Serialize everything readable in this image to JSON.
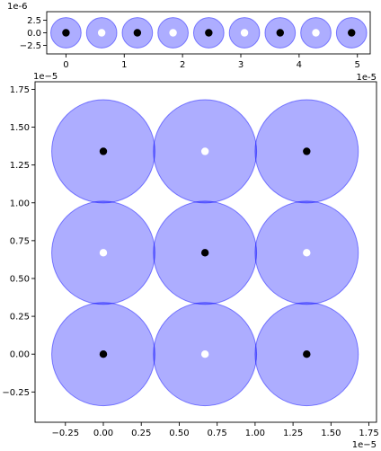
{
  "chart_data": [
    {
      "type": "scatter",
      "x_offset_label": "1e-5",
      "y_offset_label": "1e-6",
      "x_ticks": [
        0,
        1,
        2,
        3,
        4,
        5
      ],
      "y_ticks": [
        2.5,
        0.0,
        -2.5
      ],
      "x_tick_labels": [
        "0",
        "1",
        "2",
        "3",
        "4",
        "5"
      ],
      "y_tick_labels": [
        "2.5",
        "0.0",
        "−2.5"
      ],
      "xlim": [
        -0.33,
        5.22
      ],
      "ylim": [
        -4.2,
        4.2
      ],
      "circle_radius": 0.26,
      "circle_color": "#0000ff",
      "circle_alpha": 0.32,
      "points": [
        {
          "x": 0.0,
          "y": 0,
          "color": "#000000"
        },
        {
          "x": 0.6125,
          "y": 0,
          "color": "#ffffff"
        },
        {
          "x": 1.225,
          "y": 0,
          "color": "#000000"
        },
        {
          "x": 1.8375,
          "y": 0,
          "color": "#ffffff"
        },
        {
          "x": 2.45,
          "y": 0,
          "color": "#000000"
        },
        {
          "x": 3.0625,
          "y": 0,
          "color": "#ffffff"
        },
        {
          "x": 3.675,
          "y": 0,
          "color": "#000000"
        },
        {
          "x": 4.2875,
          "y": 0,
          "color": "#ffffff"
        },
        {
          "x": 4.9,
          "y": 0,
          "color": "#000000"
        }
      ]
    },
    {
      "type": "scatter",
      "x_offset_label": "1e−5",
      "y_offset_label": "1e−5",
      "x_offset_label_bottom": "1e−5",
      "x_ticks": [
        -0.25,
        0.0,
        0.25,
        0.5,
        0.75,
        1.0,
        1.25,
        1.5,
        1.75
      ],
      "x_tick_labels": [
        "−0.25",
        "0.00",
        "0.25",
        "0.50",
        "0.75",
        "1.00",
        "1.25",
        "1.50",
        "1.75"
      ],
      "y_ticks": [
        1.75,
        1.5,
        1.25,
        1.0,
        0.75,
        0.5,
        0.25,
        0.0,
        -0.25
      ],
      "y_tick_labels": [
        "1.75",
        "1.50",
        "1.25",
        "1.00",
        "0.75",
        "0.50",
        "0.25",
        "0.00",
        "−0.25"
      ],
      "xlim": [
        -0.45,
        1.8
      ],
      "ylim": [
        -0.45,
        1.8
      ],
      "circle_radius": 0.34,
      "circle_color": "#0000ff",
      "circle_alpha": 0.32,
      "points": [
        {
          "x": 0.0,
          "y": 1.34,
          "color": "#000000"
        },
        {
          "x": 0.67,
          "y": 1.34,
          "color": "#ffffff"
        },
        {
          "x": 1.34,
          "y": 1.34,
          "color": "#000000"
        },
        {
          "x": 0.0,
          "y": 0.67,
          "color": "#ffffff"
        },
        {
          "x": 0.67,
          "y": 0.67,
          "color": "#000000"
        },
        {
          "x": 1.34,
          "y": 0.67,
          "color": "#ffffff"
        },
        {
          "x": 0.0,
          "y": 0.0,
          "color": "#000000"
        },
        {
          "x": 0.67,
          "y": 0.0,
          "color": "#ffffff"
        },
        {
          "x": 1.34,
          "y": 0.0,
          "color": "#000000"
        }
      ]
    }
  ]
}
